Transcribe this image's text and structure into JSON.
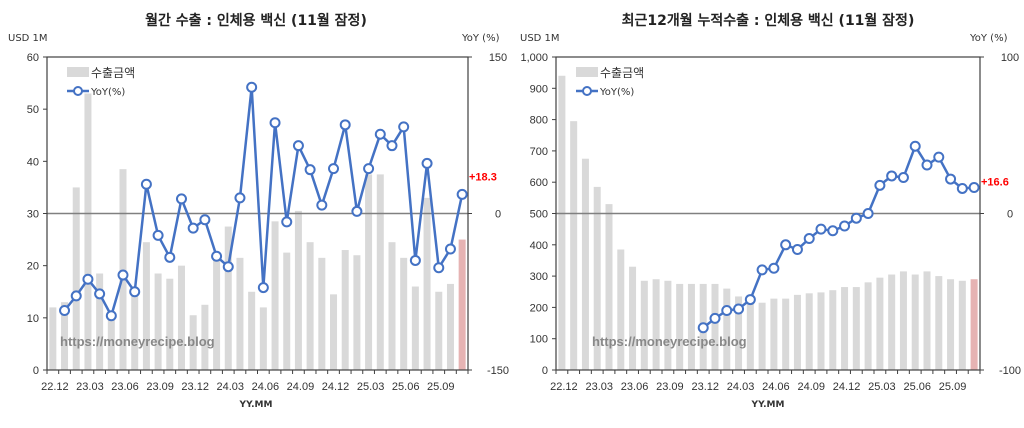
{
  "chart_data": [
    {
      "type": "bar",
      "title": "월간 수출 : 인체용 백신 (11월 잠정)",
      "xlabel": "YY.MM",
      "ylabel": "USD 1M",
      "y2label": "YoY (%)",
      "ylim": [
        0,
        60
      ],
      "yticks": [
        0,
        10,
        20,
        30,
        40,
        50,
        60
      ],
      "y2lim": [
        -150,
        150
      ],
      "y2ticks": [
        -150,
        0,
        150
      ],
      "legend": [
        "수출금액",
        "YoY(%)"
      ],
      "annotation": "+18.3",
      "watermark": "https://moneyrecipe.blog",
      "xtick_labels": [
        "22.12",
        "23.03",
        "23.06",
        "23.09",
        "23.12",
        "24.03",
        "24.06",
        "24.09",
        "24.12",
        "25.03",
        "25.06",
        "25.09"
      ],
      "categories": [
        "22.12",
        "23.01",
        "23.02",
        "23.03",
        "23.04",
        "23.05",
        "23.06",
        "23.07",
        "23.08",
        "23.09",
        "23.10",
        "23.11",
        "23.12",
        "24.01",
        "24.02",
        "24.03",
        "24.04",
        "24.05",
        "24.06",
        "24.07",
        "24.08",
        "24.09",
        "24.10",
        "24.11",
        "24.12",
        "25.01",
        "25.02",
        "25.03",
        "25.04",
        "25.05",
        "25.06",
        "25.07",
        "25.08",
        "25.09",
        "25.10",
        "25.11"
      ],
      "series": [
        {
          "name": "수출금액",
          "type": "bar",
          "axis": "left",
          "values": [
            12,
            13,
            35,
            53,
            18.5,
            11,
            38.5,
            15,
            24.5,
            18.5,
            17.5,
            20,
            10.5,
            12.5,
            22,
            27.5,
            21.5,
            15,
            12,
            28.5,
            22.5,
            30.5,
            24.5,
            21.5,
            14.5,
            23,
            22,
            37.5,
            37.5,
            24.5,
            21.5,
            16,
            33,
            15,
            16.5,
            25
          ]
        },
        {
          "name": "YoY(%)",
          "type": "line",
          "axis": "right",
          "values": [
            null,
            -93,
            -79,
            -63,
            -77,
            -98,
            -59,
            -75,
            28,
            -21,
            -42,
            14,
            -14,
            -6,
            -41,
            -51,
            15,
            121,
            -71,
            87,
            -8,
            65,
            42,
            8,
            43,
            85,
            2,
            43,
            76,
            65,
            83,
            -45,
            48,
            -52,
            -34,
            18.3
          ]
        }
      ]
    },
    {
      "type": "bar",
      "title": "최근12개월 누적수출 : 인체용 백신 (11월 잠정)",
      "xlabel": "YY.MM",
      "ylabel": "USD 1M",
      "y2label": "YoY (%)",
      "ylim": [
        0,
        1000
      ],
      "yticks": [
        0,
        100,
        200,
        300,
        400,
        500,
        600,
        700,
        800,
        900,
        1000
      ],
      "ytick_labels": [
        "0",
        "100",
        "200",
        "300",
        "400",
        "500",
        "600",
        "700",
        "800",
        "900",
        "1,000"
      ],
      "y2lim": [
        -100,
        100
      ],
      "y2ticks": [
        -100,
        0,
        100
      ],
      "legend": [
        "수출금액",
        "YoY(%)"
      ],
      "annotation": "+16.6",
      "watermark": "https://moneyrecipe.blog",
      "xtick_labels": [
        "22.12",
        "23.03",
        "23.06",
        "23.09",
        "23.12",
        "24.03",
        "24.06",
        "24.09",
        "24.12",
        "25.03",
        "25.06",
        "25.09"
      ],
      "categories": [
        "22.12",
        "23.01",
        "23.02",
        "23.03",
        "23.04",
        "23.05",
        "23.06",
        "23.07",
        "23.08",
        "23.09",
        "23.10",
        "23.11",
        "23.12",
        "24.01",
        "24.02",
        "24.03",
        "24.04",
        "24.05",
        "24.06",
        "24.07",
        "24.08",
        "24.09",
        "24.10",
        "24.11",
        "24.12",
        "25.01",
        "25.02",
        "25.03",
        "25.04",
        "25.05",
        "25.06",
        "25.07",
        "25.08",
        "25.09",
        "25.10",
        "25.11"
      ],
      "series": [
        {
          "name": "수출금액",
          "type": "bar",
          "axis": "left",
          "values": [
            940,
            795,
            675,
            585,
            530,
            385,
            330,
            285,
            290,
            285,
            275,
            275,
            275,
            275,
            260,
            235,
            240,
            215,
            228,
            228,
            240,
            245,
            248,
            255,
            265,
            265,
            280,
            295,
            305,
            315,
            305,
            315,
            300,
            290,
            285,
            290
          ]
        },
        {
          "name": "YoY(%)",
          "type": "line",
          "axis": "right",
          "values": [
            null,
            null,
            null,
            null,
            null,
            null,
            null,
            null,
            null,
            null,
            null,
            null,
            -73,
            -67,
            -62,
            -61,
            -55,
            -36,
            -35,
            -20,
            -23,
            -16,
            -10,
            -11,
            -8,
            -3,
            0,
            18,
            24,
            23,
            43,
            31,
            36,
            22,
            16,
            16.6
          ]
        }
      ]
    }
  ],
  "colors": {
    "bar": "#d9d9d9",
    "bar_last": "#e6b3b3",
    "line": "#4472c4",
    "annotation": "#ff0000",
    "zero_line": "#808080",
    "frame": "#404040"
  }
}
